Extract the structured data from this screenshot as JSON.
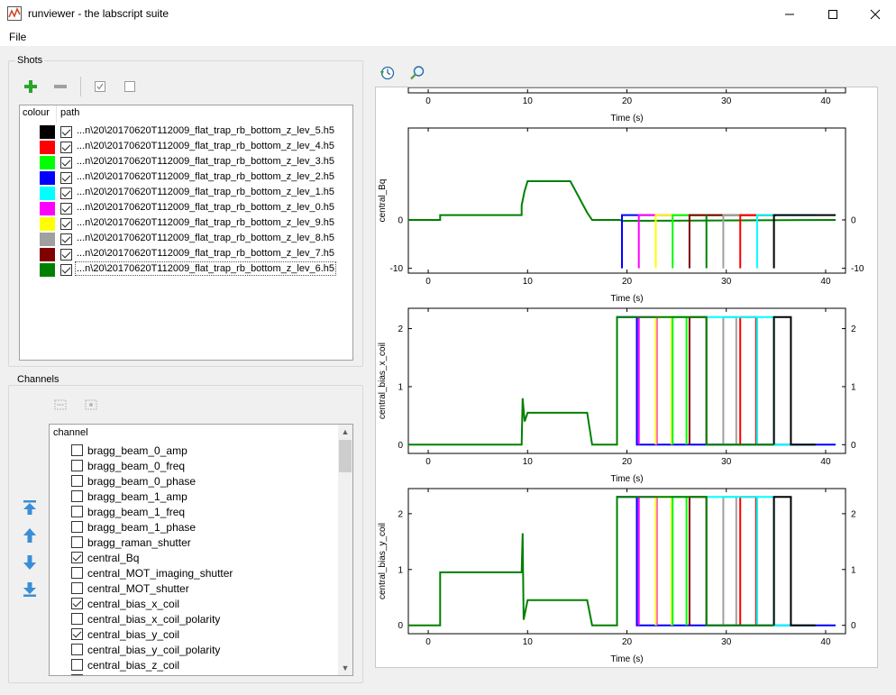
{
  "window": {
    "title": "runviewer - the labscript suite",
    "minimize_icon": "minimize-icon",
    "maximize_icon": "maximize-icon",
    "close_icon": "close-icon"
  },
  "menu": {
    "file": "File"
  },
  "shots": {
    "group_title": "Shots",
    "toolbar_icons": [
      "add-shot-icon",
      "remove-shot-icon",
      "check-all-icon",
      "uncheck-all-icon"
    ],
    "columns": {
      "colour": "colour",
      "path": "path"
    },
    "rows": [
      {
        "color": "#000000",
        "checked": true,
        "path": "...n\\20\\20170620T112009_flat_trap_rb_bottom_z_lev_5.h5"
      },
      {
        "color": "#ff0000",
        "checked": true,
        "path": "...n\\20\\20170620T112009_flat_trap_rb_bottom_z_lev_4.h5"
      },
      {
        "color": "#00ff00",
        "checked": true,
        "path": "...n\\20\\20170620T112009_flat_trap_rb_bottom_z_lev_3.h5"
      },
      {
        "color": "#0000ff",
        "checked": true,
        "path": "...n\\20\\20170620T112009_flat_trap_rb_bottom_z_lev_2.h5"
      },
      {
        "color": "#00ffff",
        "checked": true,
        "path": "...n\\20\\20170620T112009_flat_trap_rb_bottom_z_lev_1.h5"
      },
      {
        "color": "#ff00ff",
        "checked": true,
        "path": "...n\\20\\20170620T112009_flat_trap_rb_bottom_z_lev_0.h5"
      },
      {
        "color": "#ffff00",
        "checked": true,
        "path": "...n\\20\\20170620T112009_flat_trap_rb_bottom_z_lev_9.h5"
      },
      {
        "color": "#a0a0a0",
        "checked": true,
        "path": "...n\\20\\20170620T112009_flat_trap_rb_bottom_z_lev_8.h5"
      },
      {
        "color": "#800000",
        "checked": true,
        "path": "...n\\20\\20170620T112009_flat_trap_rb_bottom_z_lev_7.h5"
      },
      {
        "color": "#008000",
        "checked": true,
        "path": "...n\\20\\20170620T112009_flat_trap_rb_bottom_z_lev_6.h5"
      }
    ]
  },
  "channels": {
    "group_title": "Channels",
    "toolbar_icons": [
      "expand-all-icon",
      "collapse-all-icon"
    ],
    "header": "channel",
    "move_icons": [
      "move-to-top-icon",
      "move-up-icon",
      "move-down-icon",
      "move-to-bottom-icon"
    ],
    "items": [
      {
        "label": "bragg_beam_0_amp",
        "checked": false
      },
      {
        "label": "bragg_beam_0_freq",
        "checked": false
      },
      {
        "label": "bragg_beam_0_phase",
        "checked": false
      },
      {
        "label": "bragg_beam_1_amp",
        "checked": false
      },
      {
        "label": "bragg_beam_1_freq",
        "checked": false
      },
      {
        "label": "bragg_beam_1_phase",
        "checked": false
      },
      {
        "label": "bragg_raman_shutter",
        "checked": false
      },
      {
        "label": "central_Bq",
        "checked": true
      },
      {
        "label": "central_MOT_imaging_shutter",
        "checked": false
      },
      {
        "label": "central_MOT_shutter",
        "checked": false
      },
      {
        "label": "central_bias_x_coil",
        "checked": true
      },
      {
        "label": "central_bias_x_coil_polarity",
        "checked": false
      },
      {
        "label": "central_bias_y_coil",
        "checked": true
      },
      {
        "label": "central_bias_y_coil_polarity",
        "checked": false
      },
      {
        "label": "central_bias_z_coil",
        "checked": false
      }
    ]
  },
  "plot_toolbar_icons": [
    "reset-view-icon",
    "zoom-icon"
  ],
  "chart_data": [
    {
      "type": "line",
      "name": "partial-top-plot",
      "xlabel": "Time (s)",
      "ylabel": "",
      "xlim": [
        -2,
        42
      ],
      "xticks": [
        0,
        10,
        20,
        30,
        40
      ]
    },
    {
      "type": "line",
      "name": "central_Bq",
      "xlabel": "Time (s)",
      "ylabel": "central_Bq",
      "xlim": [
        -2,
        42
      ],
      "ylim": [
        -11,
        19
      ],
      "xticks": [
        0,
        10,
        20,
        30,
        40
      ],
      "yticks": [
        0,
        -10
      ],
      "series": [
        {
          "color": "#008000",
          "points": [
            [
              -2,
              0
            ],
            [
              1.2,
              0
            ],
            [
              1.2,
              1
            ],
            [
              9.4,
              1
            ],
            [
              9.4,
              3
            ],
            [
              9.7,
              6
            ],
            [
              10,
              8
            ],
            [
              14.3,
              8
            ],
            [
              16,
              1.5
            ],
            [
              16.5,
              0
            ],
            [
              19.3,
              0
            ],
            [
              19.5,
              -0.2
            ],
            [
              41,
              0
            ]
          ]
        },
        {
          "color": "#0000ff",
          "points": [
            [
              19.5,
              -10
            ],
            [
              19.5,
              1
            ],
            [
              35,
              1
            ]
          ]
        },
        {
          "color": "#ff00ff",
          "points": [
            [
              21.2,
              -10
            ],
            [
              21.2,
              1
            ],
            [
              35,
              1
            ]
          ]
        },
        {
          "color": "#ffff00",
          "points": [
            [
              22.9,
              -10
            ],
            [
              22.9,
              1
            ],
            [
              35,
              1
            ]
          ]
        },
        {
          "color": "#00ff00",
          "points": [
            [
              24.6,
              -10
            ],
            [
              24.6,
              1
            ],
            [
              35,
              1
            ]
          ]
        },
        {
          "color": "#800000",
          "points": [
            [
              26.3,
              -10
            ],
            [
              26.3,
              1
            ],
            [
              35,
              1
            ]
          ]
        },
        {
          "color": "#008000",
          "points": [
            [
              28,
              -10
            ],
            [
              28,
              1
            ]
          ]
        },
        {
          "color": "#a0a0a0",
          "points": [
            [
              29.7,
              -10
            ],
            [
              29.7,
              1
            ],
            [
              35,
              1
            ]
          ]
        },
        {
          "color": "#ff0000",
          "points": [
            [
              31.4,
              -10
            ],
            [
              31.4,
              1
            ],
            [
              35,
              1
            ]
          ]
        },
        {
          "color": "#00ffff",
          "points": [
            [
              33.1,
              -10
            ],
            [
              33.1,
              1
            ],
            [
              39,
              1
            ]
          ]
        },
        {
          "color": "#000000",
          "points": [
            [
              34.8,
              -10
            ],
            [
              34.8,
              1
            ],
            [
              41,
              1
            ]
          ]
        }
      ]
    },
    {
      "type": "line",
      "name": "central_bias_x_coil",
      "xlabel": "Time (s)",
      "ylabel": "central_bias_x_coil",
      "xlim": [
        -2,
        42
      ],
      "ylim": [
        -0.15,
        2.35
      ],
      "xticks": [
        0,
        10,
        20,
        30,
        40
      ],
      "yticks": [
        0,
        1,
        2
      ],
      "series": [
        {
          "color": "#0000ff",
          "points": [
            [
              19,
              0
            ],
            [
              19,
              2.2
            ],
            [
              21,
              2.2
            ],
            [
              21,
              0
            ],
            [
              41,
              0
            ]
          ]
        },
        {
          "color": "#ff00ff",
          "points": [
            [
              21.2,
              0
            ],
            [
              21.2,
              2.2
            ],
            [
              23,
              2.2
            ],
            [
              23,
              0
            ]
          ]
        },
        {
          "color": "#ffff00",
          "points": [
            [
              22.9,
              0
            ],
            [
              22.9,
              2.2
            ],
            [
              24.5,
              2.2
            ],
            [
              24.5,
              0
            ]
          ]
        },
        {
          "color": "#00ff00",
          "points": [
            [
              24.6,
              0
            ],
            [
              24.6,
              2.2
            ],
            [
              26,
              2.2
            ],
            [
              26,
              0
            ]
          ]
        },
        {
          "color": "#800000",
          "points": [
            [
              26.3,
              0
            ],
            [
              26.3,
              2.2
            ],
            [
              28,
              2.2
            ],
            [
              28,
              0
            ]
          ]
        },
        {
          "color": "#a0a0a0",
          "points": [
            [
              29.7,
              0
            ],
            [
              29.7,
              2.2
            ],
            [
              31,
              2.2
            ],
            [
              31,
              0
            ]
          ]
        },
        {
          "color": "#ff0000",
          "points": [
            [
              31.4,
              0
            ],
            [
              31.4,
              2.2
            ],
            [
              33,
              2.2
            ],
            [
              33,
              0
            ]
          ]
        },
        {
          "color": "#00ffff",
          "points": [
            [
              33.1,
              0
            ],
            [
              33.1,
              2.2
            ],
            [
              28,
              2.2
            ],
            [
              28,
              2.2
            ],
            [
              34.8,
              2.2
            ],
            [
              34.8,
              0
            ],
            [
              39,
              0
            ]
          ]
        },
        {
          "color": "#000000",
          "points": [
            [
              34.8,
              0
            ],
            [
              34.8,
              2.2
            ],
            [
              36.5,
              2.2
            ],
            [
              36.5,
              0
            ],
            [
              39,
              0
            ]
          ]
        },
        {
          "color": "#008000",
          "points": [
            [
              -2,
              0
            ],
            [
              9.4,
              0
            ],
            [
              9.5,
              0.8
            ],
            [
              9.7,
              0.4
            ],
            [
              10,
              0.55
            ],
            [
              16,
              0.55
            ],
            [
              16.5,
              0
            ],
            [
              19,
              0
            ],
            [
              19,
              2.2
            ],
            [
              28,
              2.2
            ],
            [
              28,
              0
            ],
            [
              34.8,
              0
            ]
          ]
        }
      ]
    },
    {
      "type": "line",
      "name": "central_bias_y_coil",
      "xlabel": "Time (s)",
      "ylabel": "central_bias_y_coil",
      "xlim": [
        -2,
        42
      ],
      "ylim": [
        -0.15,
        2.45
      ],
      "xticks": [
        0,
        10,
        20,
        30,
        40
      ],
      "yticks": [
        0,
        1,
        2
      ],
      "series": [
        {
          "color": "#0000ff",
          "points": [
            [
              19,
              0
            ],
            [
              19,
              2.3
            ],
            [
              21,
              2.3
            ],
            [
              21,
              0
            ],
            [
              41,
              0
            ]
          ]
        },
        {
          "color": "#ff00ff",
          "points": [
            [
              21.2,
              0
            ],
            [
              21.2,
              2.3
            ],
            [
              23,
              2.3
            ],
            [
              23,
              0
            ]
          ]
        },
        {
          "color": "#ffff00",
          "points": [
            [
              22.9,
              0
            ],
            [
              22.9,
              2.3
            ],
            [
              24.5,
              2.3
            ],
            [
              24.5,
              0
            ]
          ]
        },
        {
          "color": "#00ff00",
          "points": [
            [
              24.6,
              0
            ],
            [
              24.6,
              2.3
            ],
            [
              26,
              2.3
            ],
            [
              26,
              0
            ]
          ]
        },
        {
          "color": "#800000",
          "points": [
            [
              26.3,
              0
            ],
            [
              26.3,
              2.3
            ],
            [
              28,
              2.3
            ],
            [
              28,
              0
            ]
          ]
        },
        {
          "color": "#a0a0a0",
          "points": [
            [
              29.7,
              0
            ],
            [
              29.7,
              2.3
            ],
            [
              31,
              2.3
            ],
            [
              31,
              0
            ]
          ]
        },
        {
          "color": "#ff0000",
          "points": [
            [
              31.4,
              0
            ],
            [
              31.4,
              2.3
            ],
            [
              33,
              2.3
            ],
            [
              33,
              0
            ]
          ]
        },
        {
          "color": "#00ffff",
          "points": [
            [
              33.1,
              0
            ],
            [
              33.1,
              2.3
            ],
            [
              28,
              2.3
            ],
            [
              28,
              2.3
            ],
            [
              34.8,
              2.3
            ],
            [
              34.8,
              0
            ],
            [
              39,
              0
            ]
          ]
        },
        {
          "color": "#000000",
          "points": [
            [
              34.8,
              0
            ],
            [
              34.8,
              2.3
            ],
            [
              36.5,
              2.3
            ],
            [
              36.5,
              0
            ],
            [
              39,
              0
            ]
          ]
        },
        {
          "color": "#008000",
          "points": [
            [
              -2,
              0
            ],
            [
              1.2,
              0
            ],
            [
              1.2,
              0.95
            ],
            [
              9.4,
              0.95
            ],
            [
              9.5,
              1.65
            ],
            [
              9.6,
              0.1
            ],
            [
              10,
              0.45
            ],
            [
              16,
              0.45
            ],
            [
              16.5,
              0
            ],
            [
              19,
              0
            ],
            [
              19,
              2.3
            ],
            [
              28,
              2.3
            ],
            [
              28,
              0
            ],
            [
              34.8,
              0
            ]
          ]
        }
      ]
    }
  ]
}
